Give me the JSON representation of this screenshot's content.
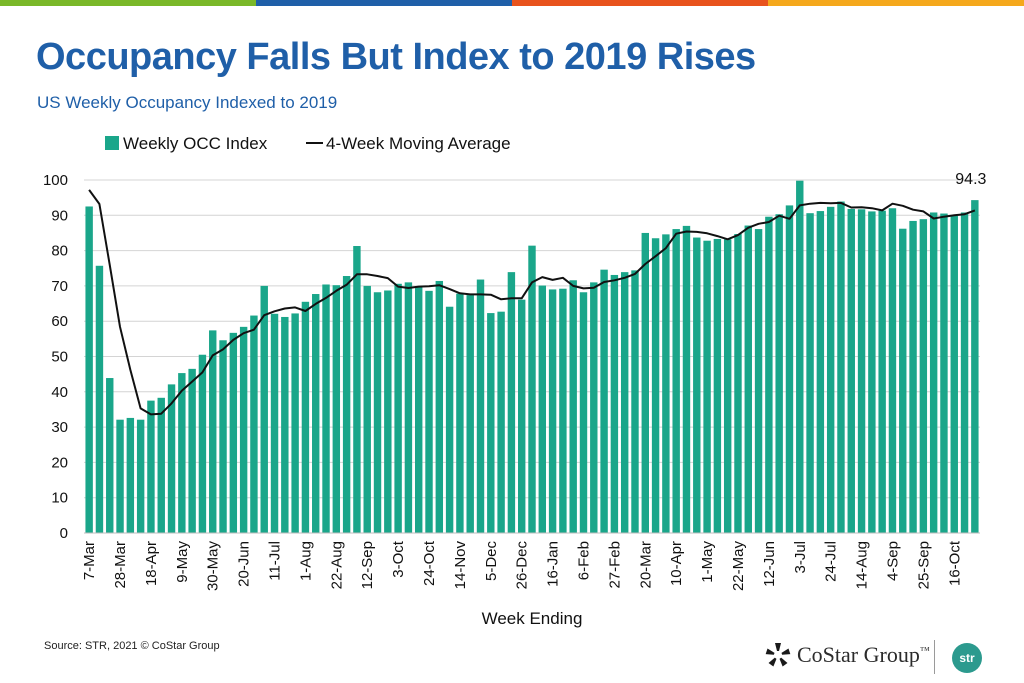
{
  "header": {
    "title": "Occupancy Falls But Index to 2019 Rises",
    "subtitle": "US Weekly Occupancy Indexed to 2019",
    "stripe_colors": [
      "#7ab829",
      "#1f5fa8",
      "#e8531d",
      "#f5a81c"
    ]
  },
  "chart_data": {
    "type": "bar",
    "title": "Occupancy Falls But Index to 2019 Rises",
    "subtitle": "US Weekly Occupancy Indexed to 2019",
    "xlabel": "Week Ending",
    "ylabel": "",
    "ylim": [
      0,
      100
    ],
    "yticks": [
      0,
      10,
      20,
      30,
      40,
      50,
      60,
      70,
      80,
      90,
      100
    ],
    "grid": true,
    "legend_position": "top-left",
    "tick_labels": [
      {
        "label": "7-Mar",
        "index": 0
      },
      {
        "label": "28-Mar",
        "index": 3
      },
      {
        "label": "18-Apr",
        "index": 6
      },
      {
        "label": "9-May",
        "index": 9
      },
      {
        "label": "30-May",
        "index": 12
      },
      {
        "label": "20-Jun",
        "index": 15
      },
      {
        "label": "11-Jul",
        "index": 18
      },
      {
        "label": "1-Aug",
        "index": 21
      },
      {
        "label": "22-Aug",
        "index": 24
      },
      {
        "label": "12-Sep",
        "index": 27
      },
      {
        "label": "3-Oct",
        "index": 30
      },
      {
        "label": "24-Oct",
        "index": 33
      },
      {
        "label": "14-Nov",
        "index": 36
      },
      {
        "label": "5-Dec",
        "index": 39
      },
      {
        "label": "26-Dec",
        "index": 42
      },
      {
        "label": "16-Jan",
        "index": 45
      },
      {
        "label": "6-Feb",
        "index": 48
      },
      {
        "label": "27-Feb",
        "index": 51
      },
      {
        "label": "20-Mar",
        "index": 54
      },
      {
        "label": "10-Apr",
        "index": 57
      },
      {
        "label": "1-May",
        "index": 60
      },
      {
        "label": "22-May",
        "index": 63
      },
      {
        "label": "12-Jun",
        "index": 66
      },
      {
        "label": "3-Jul",
        "index": 69
      },
      {
        "label": "24-Jul",
        "index": 72
      },
      {
        "label": "14-Aug",
        "index": 75
      },
      {
        "label": "4-Sep",
        "index": 78
      },
      {
        "label": "25-Sep",
        "index": 81
      },
      {
        "label": "16-Oct",
        "index": 84
      }
    ],
    "series": [
      {
        "name": "Weekly OCC Index",
        "kind": "bar",
        "color": "#1aa68a",
        "values": [
          92.5,
          75.7,
          43.9,
          32.1,
          32.6,
          32.1,
          37.5,
          38.3,
          42.1,
          45.3,
          46.5,
          50.5,
          57.4,
          54.6,
          56.7,
          58.4,
          61.6,
          70.0,
          62.1,
          61.2,
          62.2,
          65.5,
          67.7,
          70.4,
          70.2,
          72.8,
          81.3,
          70.0,
          68.2,
          68.7,
          70.6,
          71.0,
          69.9,
          68.6,
          71.4,
          64.1,
          67.8,
          67.4,
          71.8,
          62.3,
          62.7,
          73.9,
          66.1,
          81.4,
          70.1,
          69.0,
          69.2,
          71.6,
          68.2,
          71.0,
          74.6,
          73.1,
          73.9,
          74.4,
          85.0,
          83.5,
          84.6,
          86.1,
          87.0,
          83.7,
          82.8,
          83.3,
          83.2,
          84.7,
          87.1,
          86.1,
          89.6,
          90.3,
          92.8,
          99.8,
          90.6,
          91.2,
          92.4,
          93.9,
          91.8,
          91.7,
          91.1,
          91.3,
          92.0,
          86.2,
          88.4,
          88.9,
          90.8,
          90.5,
          89.8,
          90.8,
          94.3
        ]
      },
      {
        "name": "4-Week Moving Average",
        "kind": "line",
        "color": "#111111",
        "values": [
          97.2,
          93.2,
          76.0,
          58.4,
          46.3,
          35.3,
          33.6,
          33.8,
          36.7,
          40.3,
          42.9,
          45.5,
          50.3,
          52.0,
          54.7,
          56.6,
          57.6,
          61.7,
          62.8,
          63.6,
          63.9,
          62.9,
          64.9,
          66.6,
          68.6,
          70.3,
          73.3,
          73.3,
          72.8,
          72.2,
          69.8,
          69.4,
          69.8,
          69.9,
          70.2,
          69.1,
          67.9,
          67.6,
          67.6,
          67.5,
          66.2,
          66.5,
          66.5,
          71.0,
          72.5,
          71.7,
          72.3,
          70.0,
          69.3,
          69.5,
          71.1,
          71.6,
          72.3,
          73.4,
          76.2,
          78.4,
          80.7,
          84.8,
          85.4,
          85.3,
          84.9,
          84.1,
          83.2,
          84.4,
          86.5,
          87.6,
          88.1,
          89.9,
          89.0,
          92.8,
          93.3,
          93.5,
          93.4,
          93.5,
          92.2,
          92.3,
          92.0,
          91.4,
          93.3,
          92.7,
          91.6,
          91.1,
          89.1,
          89.6,
          90.0,
          90.3,
          91.4
        ]
      }
    ],
    "annotations": [
      {
        "text": "94.3",
        "series": "Weekly OCC Index",
        "index": 86
      }
    ]
  },
  "footer": {
    "source": "Source: STR, 2021 © CoStar Group",
    "logo_text": "CoStar Group",
    "trademark": "™",
    "badge_text": "str"
  }
}
